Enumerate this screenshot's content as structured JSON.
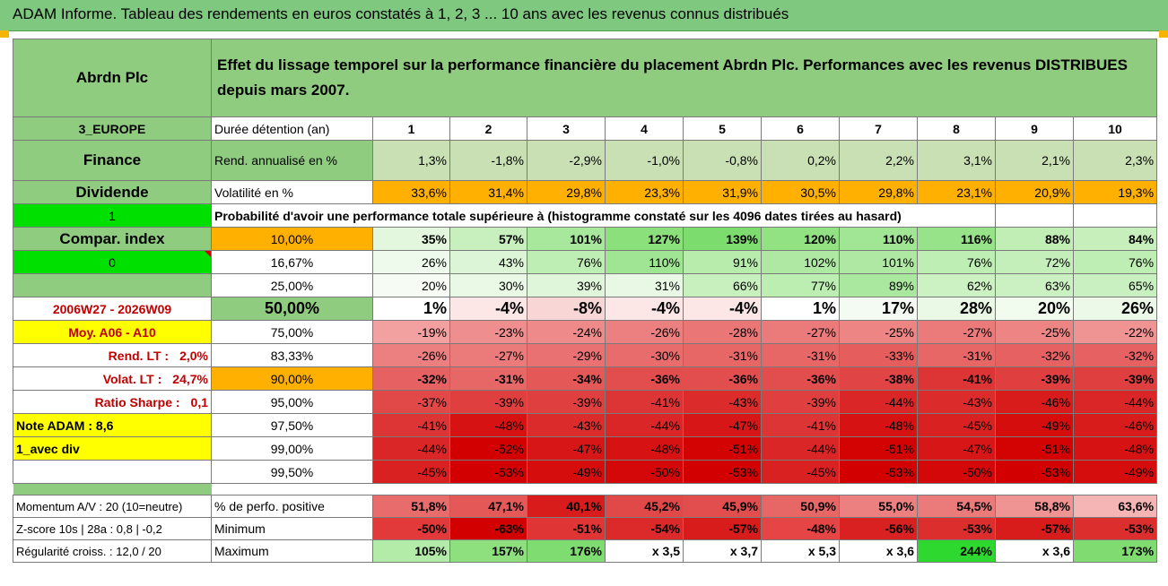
{
  "title": "ADAM Informe. Tableau des rendements en euros constatés à 1, 2, 3 ... 10 ans avec les revenus connus distribués",
  "fund": "Abrdn Plc",
  "headline": "Effet du lissage temporel sur la performance financière du placement Abrdn Plc. Performances avec les revenus DISTRIBUES depuis mars 2007.",
  "left": {
    "region": "3_EUROPE",
    "sector": "Finance",
    "dividend": "Dividende",
    "flag1": "1",
    "compar_label": "Compar. index",
    "flag0": "0",
    "period": "2006W27 - 2026W09",
    "moy": "Moy. A06 - A10",
    "rend_lt_label": "Rend. LT :",
    "rend_lt_value": "2,0%",
    "volat_lt_label": "Volat. LT :",
    "volat_lt_value": "24,7%",
    "sharpe_label": "Ratio Sharpe :",
    "sharpe_value": "0,1",
    "note": "Note ADAM : 8,6",
    "avec_div": "1_avec div"
  },
  "duration_label": "Durée détention (an)",
  "years": [
    "1",
    "2",
    "3",
    "4",
    "5",
    "6",
    "7",
    "8",
    "9",
    "10"
  ],
  "rend_label": "Rend. annualisé en %",
  "rend": [
    "1,3%",
    "-1,8%",
    "-2,9%",
    "-1,0%",
    "-0,8%",
    "0,2%",
    "2,2%",
    "3,1%",
    "2,1%",
    "2,3%"
  ],
  "vol_label": "Volatilité en %",
  "vol": [
    "33,6%",
    "31,4%",
    "29,8%",
    "23,3%",
    "31,9%",
    "30,5%",
    "29,8%",
    "23,1%",
    "20,9%",
    "19,3%"
  ],
  "prob_label": "Probabilité d'avoir une performance totale supérieure à (histogramme constaté sur les 4096 dates tirées au hasard)",
  "quantiles": [
    {
      "p": "10,00%",
      "vals": [
        "35%",
        "57%",
        "101%",
        "127%",
        "139%",
        "120%",
        "110%",
        "116%",
        "88%",
        "84%"
      ],
      "colors": [
        "#e3f7df",
        "#c8f0bf",
        "#a8e89d",
        "#8be07c",
        "#7ddc6e",
        "#92e283",
        "#a0e694",
        "#97e389",
        "#c0eeb5",
        "#c6efbb"
      ]
    },
    {
      "p": "16,67%",
      "vals": [
        "26%",
        "43%",
        "76%",
        "110%",
        "91%",
        "102%",
        "101%",
        "76%",
        "72%",
        "76%"
      ],
      "colors": [
        "#eefaeb",
        "#dcf5d6",
        "#bfeeb4",
        "#9fe593",
        "#b8ecad",
        "#aee8a2",
        "#afe8a3",
        "#bfeeb4",
        "#c4efba",
        "#bfeeb4"
      ]
    },
    {
      "p": "25,00%",
      "vals": [
        "20%",
        "30%",
        "39%",
        "31%",
        "66%",
        "77%",
        "89%",
        "62%",
        "63%",
        "65%"
      ],
      "colors": [
        "#f6fcf4",
        "#eaf9e6",
        "#e0f6da",
        "#e9f8e5",
        "#c8f0bf",
        "#bcedb1",
        "#abe89f",
        "#ccf1c3",
        "#cbf1c2",
        "#c9f0c0"
      ]
    },
    {
      "p": "50,00%",
      "vals": [
        "1%",
        "-4%",
        "-8%",
        "-4%",
        "-4%",
        "1%",
        "17%",
        "28%",
        "20%",
        "26%"
      ],
      "colors": [
        "#ffffff",
        "#fce6e6",
        "#f9d6d6",
        "#fce6e6",
        "#fce6e6",
        "#ffffff",
        "#f4fbf2",
        "#eaf9e6",
        "#f1fbee",
        "#ecf9e8"
      ],
      "big": true
    },
    {
      "p": "75,00%",
      "vals": [
        "-19%",
        "-23%",
        "-24%",
        "-26%",
        "-28%",
        "-27%",
        "-25%",
        "-27%",
        "-25%",
        "-22%"
      ],
      "colors": [
        "#f2a0a0",
        "#ef8e8e",
        "#ee8a8a",
        "#ec8080",
        "#ea7676",
        "#eb7b7b",
        "#ed8585",
        "#eb7b7b",
        "#ed8585",
        "#f09393"
      ]
    },
    {
      "p": "83,33%",
      "vals": [
        "-26%",
        "-27%",
        "-29%",
        "-30%",
        "-31%",
        "-31%",
        "-33%",
        "-31%",
        "-32%",
        "-32%"
      ],
      "colors": [
        "#ec8080",
        "#eb7b7b",
        "#e97171",
        "#e86c6c",
        "#e76767",
        "#e76767",
        "#e55d5d",
        "#e76767",
        "#e66262",
        "#e66262"
      ]
    },
    {
      "p": "90,00%",
      "vals": [
        "-32%",
        "-31%",
        "-34%",
        "-36%",
        "-36%",
        "-36%",
        "-38%",
        "-41%",
        "-39%",
        "-39%"
      ],
      "colors": [
        "#e66262",
        "#e76767",
        "#e45858",
        "#e24e4e",
        "#e24e4e",
        "#e24e4e",
        "#e04444",
        "#dd3535",
        "#df3f3f",
        "#df3f3f"
      ],
      "bold": true
    },
    {
      "p": "95,00%",
      "vals": [
        "-37%",
        "-39%",
        "-39%",
        "-41%",
        "-43%",
        "-39%",
        "-44%",
        "-43%",
        "-46%",
        "-44%"
      ],
      "colors": [
        "#e14949",
        "#df3f3f",
        "#df3f3f",
        "#dd3535",
        "#db2b2b",
        "#df3f3f",
        "#da2626",
        "#db2b2b",
        "#d81c1c",
        "#da2626"
      ]
    },
    {
      "p": "97,50%",
      "vals": [
        "-41%",
        "-48%",
        "-43%",
        "-44%",
        "-47%",
        "-41%",
        "-48%",
        "-45%",
        "-49%",
        "-46%"
      ],
      "colors": [
        "#dd3535",
        "#d61212",
        "#db2b2b",
        "#da2626",
        "#d71717",
        "#dd3535",
        "#d61212",
        "#d92121",
        "#d50d0d",
        "#d81c1c"
      ]
    },
    {
      "p": "99,00%",
      "vals": [
        "-44%",
        "-52%",
        "-47%",
        "-48%",
        "-51%",
        "-44%",
        "-51%",
        "-47%",
        "-51%",
        "-48%"
      ],
      "colors": [
        "#da2626",
        "#d20000",
        "#d71717",
        "#d61212",
        "#d30303",
        "#da2626",
        "#d30303",
        "#d71717",
        "#d30303",
        "#d61212"
      ]
    },
    {
      "p": "99,50%",
      "vals": [
        "-45%",
        "-53%",
        "-49%",
        "-50%",
        "-53%",
        "-45%",
        "-53%",
        "-50%",
        "-53%",
        "-49%"
      ],
      "colors": [
        "#d92121",
        "#d20000",
        "#d50d0d",
        "#d40808",
        "#d20000",
        "#d92121",
        "#d20000",
        "#d40808",
        "#d20000",
        "#d50d0d"
      ]
    }
  ],
  "bottom": [
    {
      "left": "Momentum A/V : 20 (10=neutre)",
      "label": "% de perfo. positive",
      "vals": [
        "51,8%",
        "47,1%",
        "40,1%",
        "45,2%",
        "45,9%",
        "50,9%",
        "55,0%",
        "54,5%",
        "58,8%",
        "63,6%"
      ],
      "colors": [
        "#e86c6c",
        "#e45858",
        "#d81c1c",
        "#e14949",
        "#e24e4e",
        "#e76767",
        "#ec8080",
        "#eb7b7b",
        "#f09393",
        "#f5b5b5"
      ]
    },
    {
      "left": "Z-score 10s | 28a : 0,8 | -0,2",
      "label": "Minimum",
      "vals": [
        "-50%",
        "-63%",
        "-51%",
        "-54%",
        "-57%",
        "-48%",
        "-56%",
        "-53%",
        "-57%",
        "-53%"
      ],
      "colors": [
        "#e23a3a",
        "#d20000",
        "#e03535",
        "#dc2a2a",
        "#d81c1c",
        "#e54545",
        "#d92121",
        "#dd2e2e",
        "#d81c1c",
        "#dd2e2e"
      ]
    },
    {
      "left": "Régularité croiss. : 12,0 / 20",
      "label": "Maximum",
      "vals": [
        "105%",
        "157%",
        "176%",
        "x 3,5",
        "x 3,7",
        "x 5,3",
        "x 3,6",
        "244%",
        "x 3,6",
        "173%"
      ],
      "colors": [
        "#b3eba8",
        "#8ee07f",
        "#7fdc70",
        "#ffffff",
        "#ffffff",
        "#ffffff",
        "#ffffff",
        "#2ed82e",
        "#ffffff",
        "#80dc71"
      ]
    }
  ]
}
